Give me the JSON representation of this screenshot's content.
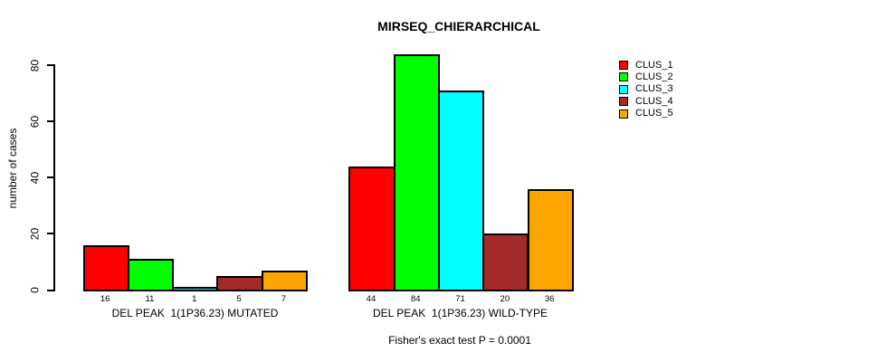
{
  "chart_data": {
    "type": "bar",
    "title": "MIRSEQ_CHIERARCHICAL",
    "ylabel": "number of cases",
    "xlabel": "",
    "ylim": [
      0,
      80
    ],
    "yticks": [
      0,
      20,
      40,
      60,
      80
    ],
    "grid": false,
    "legend_position": "right",
    "legend": [
      "CLUS_1",
      "CLUS_2",
      "CLUS_3",
      "CLUS_4",
      "CLUS_5"
    ],
    "series_colors": [
      "#ff0000",
      "#00ff00",
      "#00ffff",
      "#a52a2a",
      "#ffa500"
    ],
    "border_color": "#000000",
    "groups": [
      {
        "label": "DEL PEAK  1(1P36.23) MUTATED",
        "values": [
          16,
          11,
          1,
          5,
          7
        ]
      },
      {
        "label": "DEL PEAK  1(1P36.23) WILD-TYPE",
        "values": [
          44,
          84,
          71,
          20,
          36
        ]
      }
    ],
    "bar_value_labels": [
      [
        16,
        11,
        1,
        5,
        7
      ],
      [
        44,
        84,
        71,
        20,
        36
      ]
    ],
    "annotation": "Fisher's exact test P = 0.0001"
  }
}
